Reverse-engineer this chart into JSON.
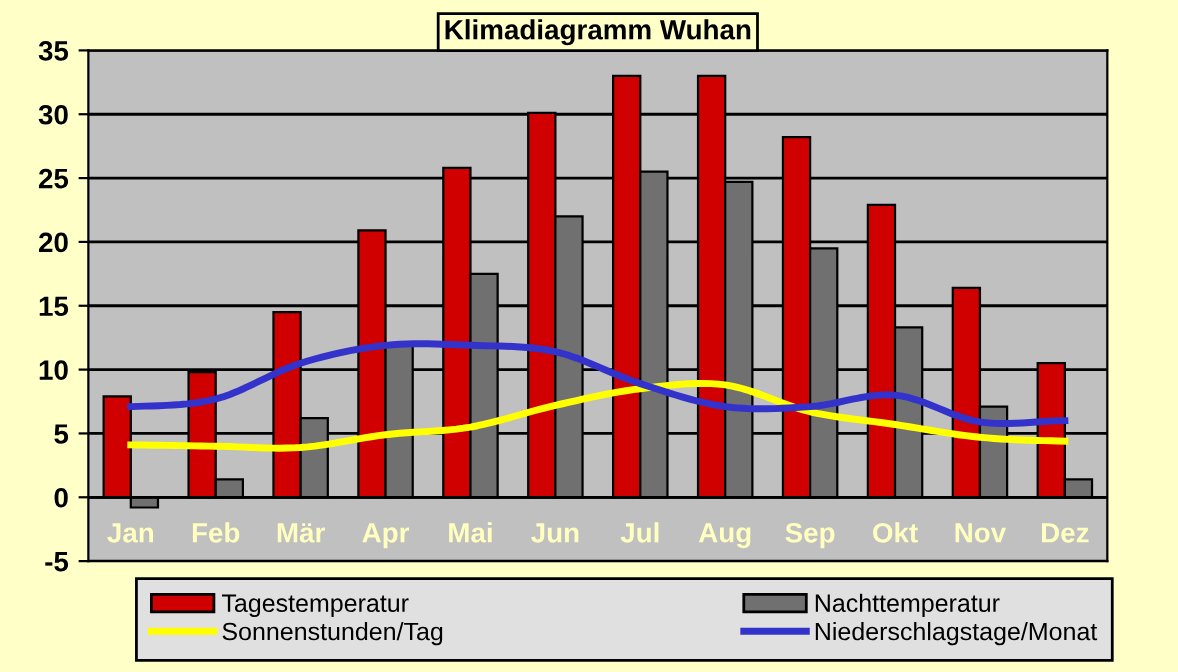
{
  "chart_data": {
    "type": "bar",
    "title": "Klimadiagramm Wuhan",
    "categories": [
      "Jan",
      "Feb",
      "Mär",
      "Apr",
      "Mai",
      "Jun",
      "Jul",
      "Aug",
      "Sep",
      "Okt",
      "Nov",
      "Dez"
    ],
    "series": [
      {
        "name": "Tagestemperatur",
        "color": "#d00000",
        "values": [
          7.9,
          9.8,
          14.5,
          20.9,
          25.8,
          30.1,
          33,
          33,
          28.2,
          22.9,
          16.4,
          10.5
        ]
      },
      {
        "name": "Nachttemperatur",
        "color": "#707070",
        "values": [
          -0.8,
          1.4,
          6.2,
          12.0,
          17.5,
          22,
          25.5,
          24.7,
          19.5,
          13.3,
          7.1,
          1.4
        ]
      },
      {
        "name": "Sonnenstunden/Tag",
        "type": "line",
        "color": "#ffff00",
        "values": [
          4.1,
          4.0,
          3.9,
          4.9,
          5.5,
          7.2,
          8.5,
          8.8,
          6.7,
          5.7,
          4.7,
          4.4
        ]
      },
      {
        "name": "Niederschlagstage/Monat",
        "type": "line",
        "color": "#3333cc",
        "values": [
          7.1,
          7.7,
          10.5,
          11.9,
          11.9,
          11.4,
          8.9,
          7.1,
          7.1,
          8.0,
          5.9,
          6.0
        ]
      }
    ],
    "ylim": [
      -5,
      35
    ],
    "yticks": [
      -5,
      0,
      5,
      10,
      15,
      20,
      25,
      30,
      35
    ],
    "grid": "y",
    "legend": "bottom",
    "marker": "none"
  }
}
